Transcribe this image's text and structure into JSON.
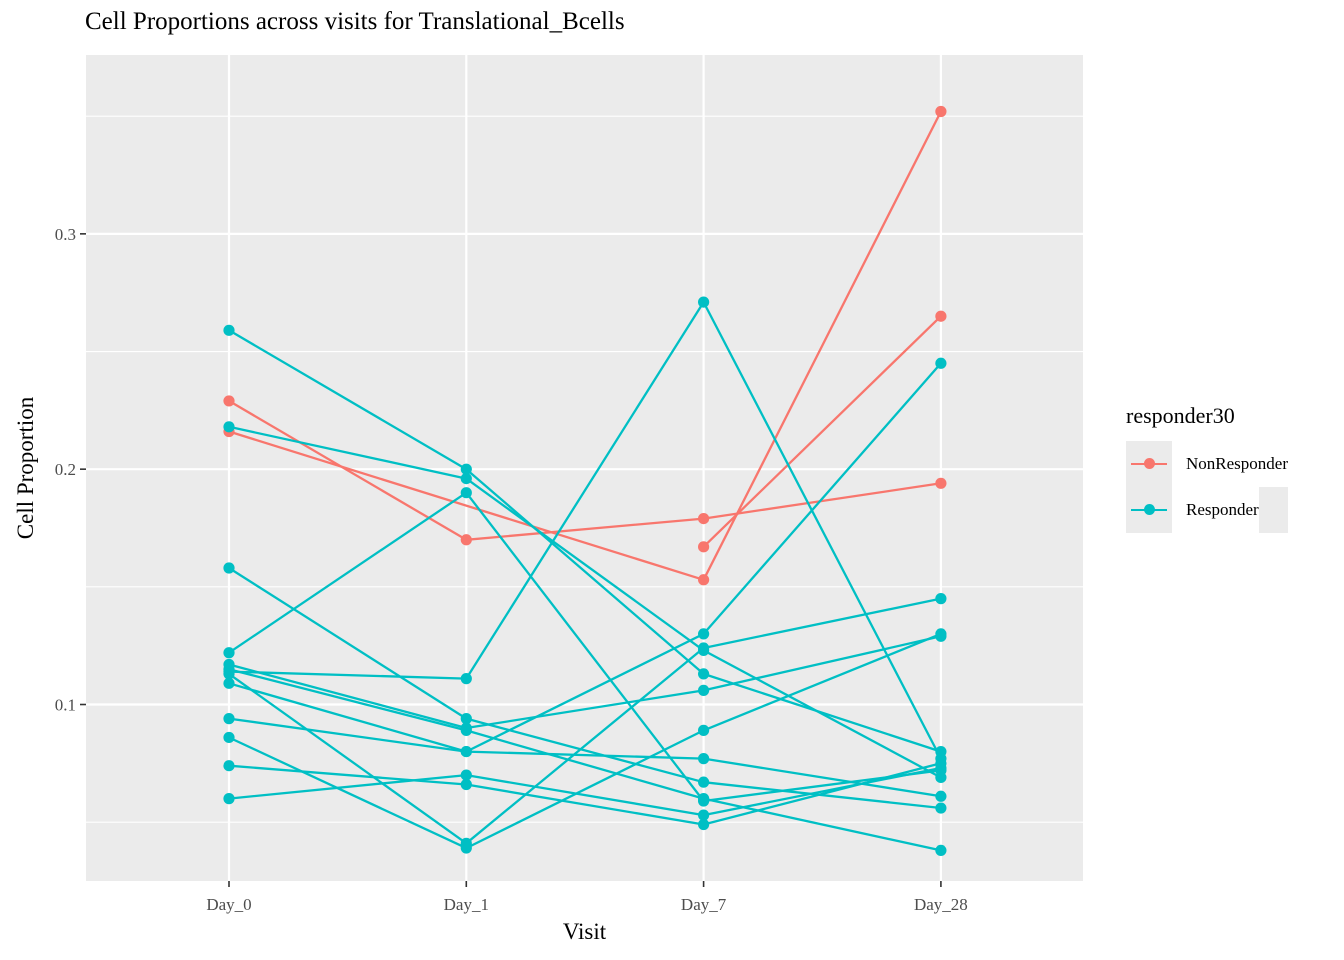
{
  "chart_data": {
    "type": "line",
    "title": "Cell Proportions across visits for Translational_Bcells",
    "xlabel": "Visit",
    "ylabel": "Cell Proportion",
    "categories": [
      "Day_0",
      "Day_1",
      "Day_7",
      "Day_28"
    ],
    "ylim": [
      0.025,
      0.376
    ],
    "yticks": [
      0.1,
      0.2,
      0.3
    ],
    "ytick_labels": [
      "0.1",
      "0.2",
      "0.3"
    ],
    "grid": true,
    "legend": {
      "title": "responder30",
      "position": "right",
      "entries": [
        {
          "label": "NonResponder",
          "color": "#F8766D"
        },
        {
          "label": "Responder",
          "color": "#00BFC4"
        }
      ]
    },
    "series": [
      {
        "group": "NonResponder",
        "color": "#F8766D",
        "values": [
          0.229,
          0.17,
          0.179,
          0.194
        ]
      },
      {
        "group": "NonResponder",
        "color": "#F8766D",
        "values": [
          0.216,
          null,
          0.153,
          0.352
        ]
      },
      {
        "group": "NonResponder",
        "color": "#F8766D",
        "values": [
          null,
          null,
          0.167,
          0.265
        ]
      },
      {
        "group": "Responder",
        "color": "#00BFC4",
        "values": [
          0.259,
          0.2,
          0.113,
          0.08
        ]
      },
      {
        "group": "Responder",
        "color": "#00BFC4",
        "values": [
          0.218,
          0.196,
          0.123,
          0.069
        ]
      },
      {
        "group": "Responder",
        "color": "#00BFC4",
        "values": [
          0.158,
          0.094,
          0.067,
          0.056
        ]
      },
      {
        "group": "Responder",
        "color": "#00BFC4",
        "values": [
          0.122,
          0.19,
          0.059,
          0.072
        ]
      },
      {
        "group": "Responder",
        "color": "#00BFC4",
        "values": [
          0.117,
          0.09,
          0.106,
          0.129
        ]
      },
      {
        "group": "Responder",
        "color": "#00BFC4",
        "values": [
          0.115,
          0.089,
          0.06,
          0.038
        ]
      },
      {
        "group": "Responder",
        "color": "#00BFC4",
        "values": [
          0.114,
          0.111,
          0.271,
          0.077
        ]
      },
      {
        "group": "Responder",
        "color": "#00BFC4",
        "values": [
          0.113,
          0.041,
          0.124,
          0.145
        ]
      },
      {
        "group": "Responder",
        "color": "#00BFC4",
        "values": [
          0.109,
          0.08,
          0.13,
          0.245
        ]
      },
      {
        "group": "Responder",
        "color": "#00BFC4",
        "values": [
          0.094,
          0.08,
          0.077,
          0.061
        ]
      },
      {
        "group": "Responder",
        "color": "#00BFC4",
        "values": [
          0.086,
          0.039,
          0.089,
          0.13
        ]
      },
      {
        "group": "Responder",
        "color": "#00BFC4",
        "values": [
          0.074,
          0.066,
          0.049,
          0.075
        ]
      },
      {
        "group": "Responder",
        "color": "#00BFC4",
        "values": [
          0.06,
          0.07,
          0.053,
          0.073
        ]
      }
    ]
  }
}
